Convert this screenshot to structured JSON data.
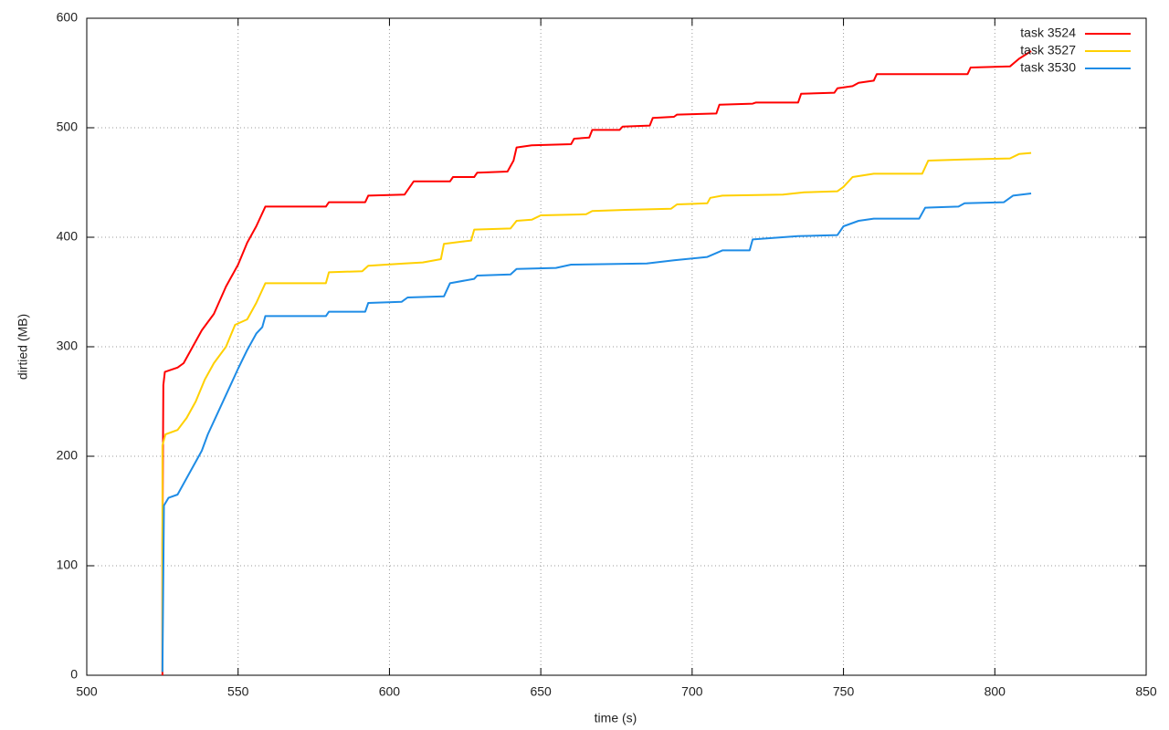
{
  "chart_data": {
    "type": "line",
    "x_label": "time (s)",
    "y_label": "dirtied (MB)",
    "xlim": [
      500,
      850
    ],
    "xticks": [
      500,
      550,
      600,
      650,
      700,
      750,
      800,
      850
    ],
    "ylim": [
      0,
      600
    ],
    "yticks": [
      0,
      100,
      200,
      300,
      400,
      500,
      600
    ],
    "grid": true,
    "legend": "top-right",
    "series": [
      {
        "name": "task 3524",
        "color": "#ff0000",
        "x": [
          525,
          525,
          525.3,
          525.8,
          530,
          532,
          535,
          538,
          542,
          546,
          550,
          553,
          556,
          559,
          579,
          580,
          592,
          593,
          605,
          608,
          620,
          621,
          628,
          629,
          639,
          641,
          642,
          647,
          660,
          661,
          666,
          667,
          676,
          677,
          686,
          687,
          694,
          695,
          708,
          709,
          720,
          721,
          735,
          736,
          747,
          748,
          753,
          755,
          760,
          761,
          791,
          792,
          805,
          808,
          812
        ],
        "values": [
          0,
          120,
          265,
          277,
          281,
          285,
          300,
          315,
          330,
          355,
          375,
          395,
          410,
          428,
          428,
          432,
          432,
          438,
          439,
          451,
          451,
          455,
          455,
          459,
          460,
          470,
          482,
          484,
          485,
          490,
          491,
          498,
          498,
          501,
          502,
          509,
          510,
          512,
          513,
          521,
          522,
          523,
          523,
          531,
          532,
          536,
          538,
          541,
          543,
          549,
          549,
          555,
          556,
          563,
          570
        ]
      },
      {
        "name": "task 3527",
        "color": "#ffd000",
        "x": [
          525,
          525,
          526,
          530,
          533,
          536,
          539,
          542,
          546,
          549,
          553,
          556,
          559,
          579,
          580,
          591,
          593,
          605,
          611,
          617,
          618,
          624,
          627,
          628,
          640,
          642,
          647,
          650,
          665,
          667,
          678,
          693,
          695,
          705,
          706,
          710,
          730,
          737,
          748,
          750,
          753,
          760,
          776,
          778,
          790,
          805,
          808,
          812
        ],
        "values": [
          3,
          210,
          220,
          224,
          235,
          250,
          270,
          285,
          300,
          320,
          325,
          340,
          358,
          358,
          368,
          369,
          374,
          376,
          377,
          380,
          394,
          396,
          397,
          407,
          408,
          415,
          416,
          420,
          421,
          424,
          425,
          426,
          430,
          431,
          436,
          438,
          439,
          441,
          442,
          446,
          455,
          458,
          458,
          470,
          471,
          472,
          476,
          477
        ]
      },
      {
        "name": "task 3530",
        "color": "#1e8ce6",
        "x": [
          525,
          525.5,
          527,
          530,
          533,
          536,
          538,
          540,
          543,
          546,
          548,
          550,
          553,
          556,
          558,
          559,
          579,
          580,
          592,
          593,
          604,
          606,
          618,
          620,
          628,
          629,
          640,
          642,
          655,
          660,
          685,
          694,
          705,
          710,
          719,
          720,
          735,
          748,
          750,
          755,
          760,
          775,
          777,
          788,
          790,
          803,
          806,
          812
        ],
        "values": [
          3,
          155,
          162,
          165,
          180,
          195,
          205,
          220,
          238,
          256,
          268,
          280,
          297,
          312,
          318,
          328,
          328,
          332,
          332,
          340,
          341,
          345,
          346,
          358,
          362,
          365,
          366,
          371,
          372,
          375,
          376,
          379,
          382,
          388,
          388,
          398,
          401,
          402,
          410,
          415,
          417,
          417,
          427,
          428,
          431,
          432,
          438,
          440
        ]
      }
    ]
  }
}
